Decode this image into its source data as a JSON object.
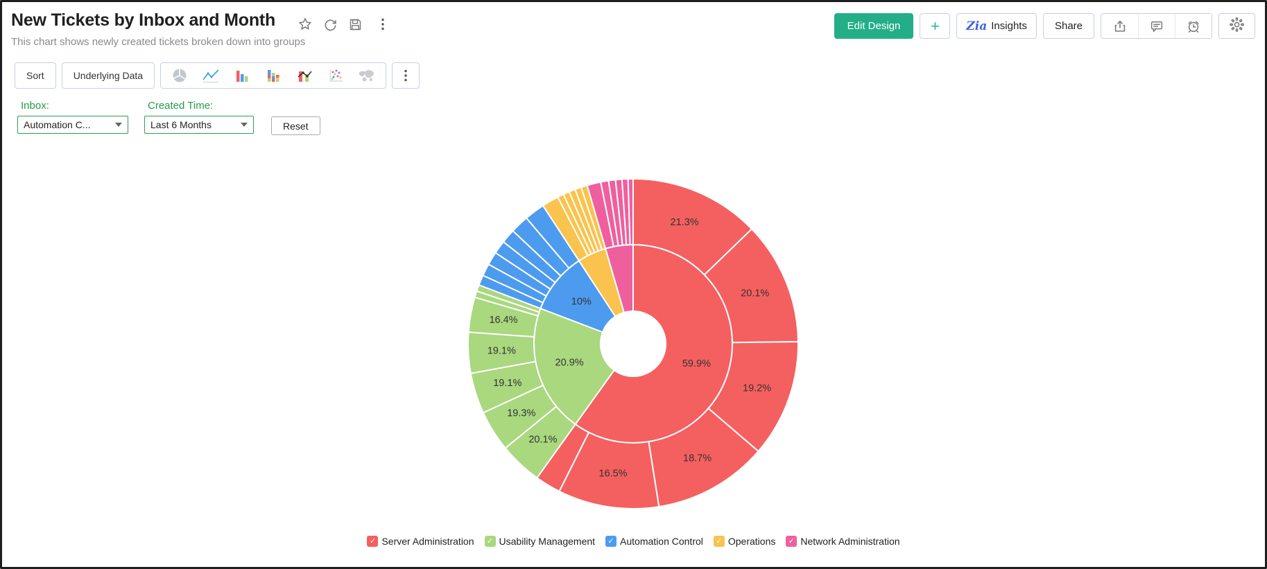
{
  "header": {
    "title": "New Tickets by Inbox and Month",
    "subtitle": "This chart shows newly created tickets broken down into groups",
    "title_icons": [
      "star-icon",
      "refresh-icon",
      "save-icon",
      "more-vertical-icon"
    ]
  },
  "actions": {
    "edit_design": "Edit Design",
    "add": "+",
    "insights": "Insights",
    "zia_icon": "Zia",
    "share": "Share",
    "icon_buttons": [
      "export-icon",
      "comment-icon",
      "alarm-icon",
      "gear-icon"
    ]
  },
  "toolbar": {
    "sort": "Sort",
    "underlying_data": "Underlying Data",
    "chart_types": [
      "pie-chart-icon",
      "line-chart-icon",
      "bar-chart-icon",
      "stacked-bar-chart-icon",
      "combo-chart-icon",
      "scatter-chart-icon",
      "map-chart-icon"
    ],
    "more": "more-chart-types-icon"
  },
  "filters": {
    "inbox_label": "Inbox:",
    "inbox_value": "Automation C...",
    "created_label": "Created Time:",
    "created_value": "Last 6 Months",
    "reset": "Reset",
    "accent_color": "#259b48"
  },
  "chart_data": {
    "type": "pie",
    "subtype": "two-ring-donut-sunburst",
    "title": "New Tickets by Inbox and Month",
    "direction": "clockwise",
    "start_angle_deg": 0,
    "hole_radius": 47,
    "ring_radius": 143,
    "outer_radius": 238,
    "slice_stroke": "#ffffff",
    "label_color": "#333333",
    "legend_position": "bottom",
    "groups": [
      {
        "name": "Server Administration",
        "color": "#F4605F",
        "pct": 59.9,
        "label": "59.9%",
        "sub_pcts": [
          21.3,
          20.1,
          19.2,
          18.7,
          16.5,
          4.2
        ],
        "sub_labels": [
          "21.3%",
          "20.1%",
          "19.2%",
          "18.7%",
          "16.5%",
          ""
        ]
      },
      {
        "name": "Usability Management",
        "color": "#A9D87F",
        "pct": 20.9,
        "label": "20.9%",
        "sub_pcts": [
          20.1,
          19.3,
          19.1,
          19.1,
          16.4,
          3.0,
          3.0
        ],
        "sub_labels": [
          "20.1%",
          "19.3%",
          "19.1%",
          "19.1%",
          "16.4%",
          "",
          ""
        ]
      },
      {
        "name": "Automation Control",
        "color": "#4D9BEF",
        "pct": 10.0,
        "label": "10%",
        "sub_pcts": [
          10,
          12,
          13,
          13,
          14,
          18,
          20
        ],
        "sub_labels": [
          "",
          "",
          "",
          "",
          "",
          "",
          ""
        ]
      },
      {
        "name": "Operations",
        "color": "#FAC34D",
        "pct": 4.7,
        "label": "",
        "sub_pcts": [
          35,
          13,
          13,
          13,
          13,
          13
        ],
        "sub_labels": [
          "",
          "",
          "",
          "",
          "",
          ""
        ]
      },
      {
        "name": "Network Administration",
        "color": "#EF5F9E",
        "pct": 4.5,
        "label": "",
        "sub_pcts": [
          30,
          17,
          15,
          14,
          13,
          11
        ],
        "sub_labels": [
          "",
          "",
          "",
          "",
          "",
          ""
        ]
      }
    ]
  }
}
